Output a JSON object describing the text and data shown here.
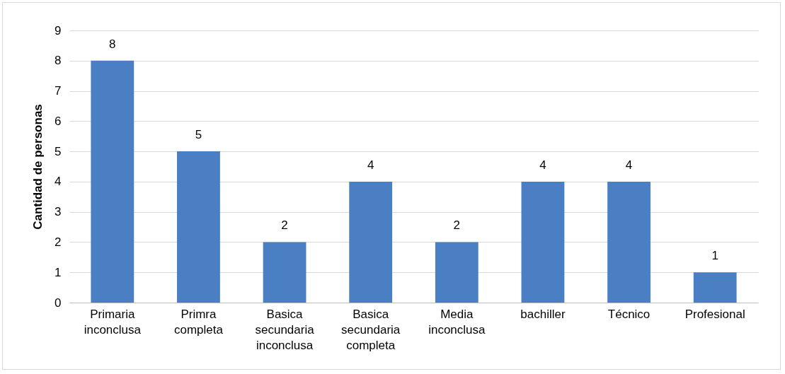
{
  "chart_data": {
    "type": "bar",
    "ylabel": "Cantidad de personas",
    "categories": [
      "Primaria inconclusa",
      "Primra completa",
      "Basica secundaria inconclusa",
      "Basica secundaria completa",
      "Media inconclusa",
      "bachiller",
      "Técnico",
      "Profesional"
    ],
    "values": [
      8,
      5,
      2,
      4,
      2,
      4,
      4,
      1
    ],
    "color": "#4a7fc4",
    "ylim": [
      0,
      9
    ],
    "yticks": [
      0,
      1,
      2,
      3,
      4,
      5,
      6,
      7,
      8,
      9
    ],
    "grid": "y",
    "data_labels": true
  }
}
